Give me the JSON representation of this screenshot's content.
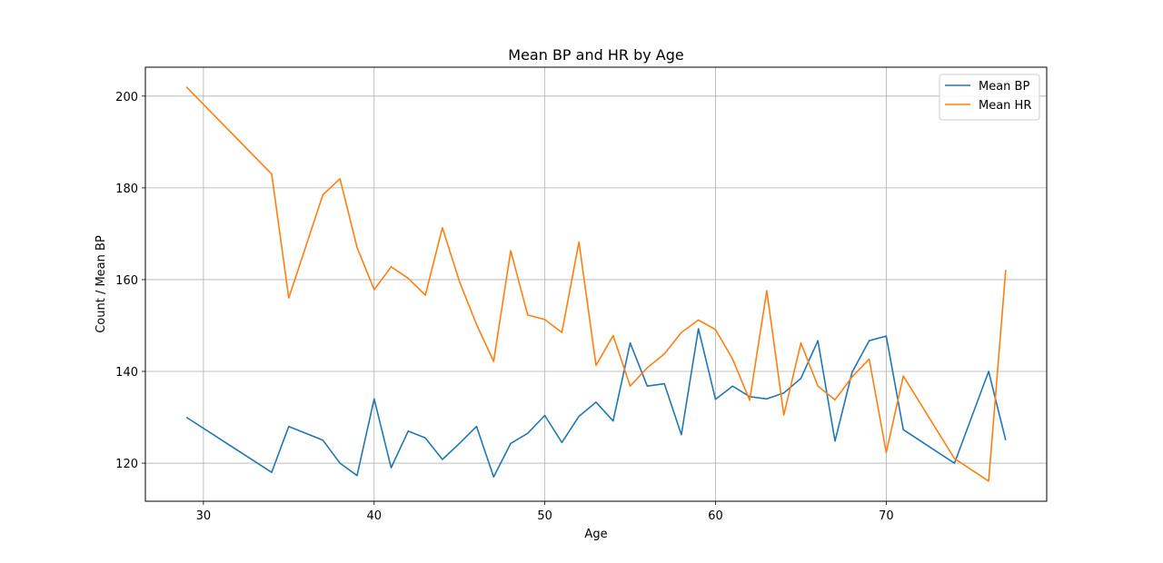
{
  "chart_data": {
    "type": "line",
    "title": "Mean BP and HR by Age",
    "xlabel": "Age",
    "ylabel": "Count / Mean BP",
    "xlim": [
      26.6,
      79.4
    ],
    "ylim": [
      111.7,
      206.3
    ],
    "xticks": [
      30,
      40,
      50,
      60,
      70
    ],
    "yticks": [
      120,
      140,
      160,
      180,
      200
    ],
    "grid": true,
    "legend_position": "top-right",
    "x": [
      29,
      34,
      35,
      37,
      38,
      39,
      40,
      41,
      42,
      43,
      44,
      45,
      46,
      47,
      48,
      49,
      50,
      51,
      52,
      53,
      54,
      55,
      56,
      57,
      58,
      59,
      60,
      61,
      62,
      63,
      64,
      65,
      66,
      67,
      68,
      69,
      70,
      71,
      74,
      76,
      77
    ],
    "series": [
      {
        "name": "Mean BP",
        "color": "#1f77b4",
        "values": [
          130,
          118,
          128,
          125,
          120,
          117.3,
          134,
          119,
          127,
          125.5,
          120.8,
          124.3,
          128,
          117,
          124.3,
          126.5,
          130.4,
          124.5,
          130.2,
          133.3,
          129.2,
          146.2,
          136.8,
          137.3,
          126.2,
          149.3,
          133.9,
          136.8,
          134.5,
          134,
          135.3,
          138.5,
          146.7,
          124.8,
          139.8,
          146.7,
          147.7,
          127.3,
          120,
          140,
          125
        ]
      },
      {
        "name": "Mean HR",
        "color": "#ff7f0e",
        "values": [
          202,
          183,
          156,
          178.5,
          182,
          167,
          157.8,
          162.8,
          160.3,
          156.6,
          171.3,
          159.6,
          150.2,
          142.2,
          166.3,
          152.3,
          151.3,
          148.5,
          168.2,
          141.3,
          147.8,
          136.8,
          140.8,
          143.8,
          148.5,
          151.2,
          149.1,
          142.7,
          133.7,
          157.6,
          130.5,
          146.2,
          136.8,
          133.8,
          138.8,
          142.7,
          122.3,
          139,
          121,
          116.1,
          162.1
        ]
      }
    ]
  }
}
